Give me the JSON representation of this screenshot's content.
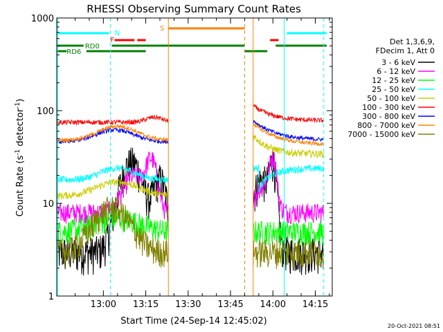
{
  "chart_data": {
    "type": "line",
    "title": "RHESSI Observing Summary Count Rates",
    "xlabel": "Start Time (24-Sep-14 12:45:02)",
    "ylabel_main": "Count Rate (s",
    "ylabel_exp1": "-1",
    "ylabel_mid": " detector",
    "ylabel_exp2": "-1",
    "ylabel_end": ")",
    "yscale": "log",
    "ylim": [
      1,
      1000
    ],
    "xlim_minutes": [
      -16.5,
      81
    ],
    "x_ticks": [
      {
        "label": "13:00",
        "t": 0
      },
      {
        "label": "13:15",
        "t": 15
      },
      {
        "label": "13:30",
        "t": 30
      },
      {
        "label": "13:45",
        "t": 45
      },
      {
        "label": "14:00",
        "t": 60
      },
      {
        "label": "14:15",
        "t": 75
      }
    ],
    "y_ticks": [
      {
        "label": "1",
        "v": 1
      },
      {
        "label": "10",
        "v": 10
      },
      {
        "label": "100",
        "v": 100
      },
      {
        "label": "1000",
        "v": 1000
      }
    ],
    "legend_header": [
      "Det 1,3,6,9,",
      "FDecim 1, Att 0"
    ],
    "series": [
      {
        "name": "3 - 6 keV",
        "color": "#000000"
      },
      {
        "name": "6 - 12 keV",
        "color": "#ff00ff"
      },
      {
        "name": "12 - 25 keV",
        "color": "#00ff00"
      },
      {
        "name": "25 - 50 keV",
        "color": "#00ffff"
      },
      {
        "name": "50 - 100 keV",
        "color": "#cccc00"
      },
      {
        "name": "100 - 300 keV",
        "color": "#ff0000"
      },
      {
        "name": "300 - 800 keV",
        "color": "#0000ff"
      },
      {
        "name": "800 - 7000 keV",
        "color": "#ff8000"
      },
      {
        "name": "7000 - 15000 keV",
        "color": "#808000"
      }
    ],
    "flag_labels": {
      "N": "N",
      "F": "F",
      "S": "S",
      "RD0": "RD0",
      "RD6": "RD6"
    },
    "timestamp": "20-Oct-2021 08:51"
  }
}
